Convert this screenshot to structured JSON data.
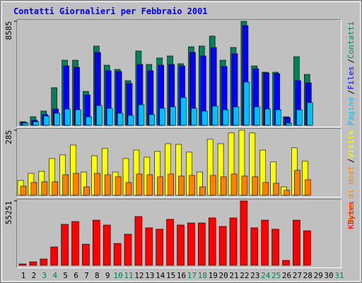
{
  "chart_data": {
    "type": "bar",
    "title": "Contatti Giornalieri per Febbraio 2001",
    "legend_separator": "/",
    "categories": [
      "1",
      "2",
      "3",
      "4",
      "5",
      "6",
      "7",
      "8",
      "9",
      "10",
      "11",
      "12",
      "13",
      "14",
      "15",
      "16",
      "17",
      "18",
      "19",
      "20",
      "21",
      "22",
      "23",
      "24",
      "25",
      "26",
      "27",
      "28",
      "29",
      "30",
      "31"
    ],
    "category_colors": [
      "#000000",
      "#000000",
      "#00805c",
      "#00805c",
      "#000000",
      "#000000",
      "#000000",
      "#000000",
      "#000000",
      "#00805c",
      "#00805c",
      "#000000",
      "#000000",
      "#000000",
      "#000000",
      "#000000",
      "#00805c",
      "#00805c",
      "#000000",
      "#000000",
      "#000000",
      "#000000",
      "#000000",
      "#00805c",
      "#00805c",
      "#000000",
      "#000000",
      "#000000",
      "#000000",
      "#000000",
      "#00805c"
    ],
    "panels": [
      {
        "ylim": [
          0,
          8585
        ],
        "yticks": [
          8585
        ],
        "series": [
          {
            "name": "Contatti",
            "color": "#00805c",
            "values": [
              290,
              700,
              1170,
              3100,
              5370,
              5370,
              2800,
              6540,
              4960,
              4610,
              3680,
              6130,
              5020,
              5550,
              5720,
              5080,
              6480,
              6540,
              7360,
              5370,
              6420,
              8585,
              4900,
              4380,
              4380,
              700,
              5660,
              4200,
              null,
              null,
              null
            ]
          },
          {
            "name": "Files",
            "color": "#0000ff",
            "values": [
              235,
              410,
              880,
              1340,
              4900,
              4790,
              2510,
              6010,
              4500,
              4440,
              3450,
              5020,
              4500,
              4960,
              5020,
              4900,
              6010,
              5720,
              6420,
              4850,
              5900,
              8230,
              4670,
              4320,
              4260,
              640,
              3680,
              3500,
              null,
              null,
              null
            ]
          },
          {
            "name": "Pagine",
            "color": "#00c0ff",
            "values": [
              175,
              290,
              760,
              990,
              1340,
              1280,
              700,
              1630,
              1400,
              990,
              820,
              1690,
              880,
              1400,
              1520,
              2280,
              1400,
              1170,
              1580,
              1280,
              1520,
              3560,
              1520,
              1340,
              1280,
              175,
              1280,
              1870,
              null,
              null,
              null
            ]
          }
        ]
      },
      {
        "ylim": [
          0,
          285
        ],
        "yticks": [
          285
        ],
        "series": [
          {
            "name": "Visite",
            "color": "#ffff00",
            "values": [
              65,
              96,
              105,
              161,
              177,
              220,
              102,
              173,
              205,
              102,
              161,
              198,
              167,
              192,
              226,
              223,
              189,
              102,
              245,
              226,
              273,
              285,
              273,
              198,
              146,
              37,
              208,
              149,
              null,
              null,
              null
            ]
          },
          {
            "name": "Nomi di Host",
            "color": "#ff8000",
            "values": [
              40,
              56,
              59,
              59,
              90,
              96,
              37,
              96,
              90,
              81,
              56,
              93,
              90,
              81,
              93,
              84,
              87,
              37,
              87,
              81,
              93,
              84,
              81,
              56,
              53,
              22,
              109,
              68,
              null,
              null,
              null
            ]
          }
        ]
      },
      {
        "ylim": [
          0,
          55251
        ],
        "yticks": [
          55251
        ],
        "series": [
          {
            "name": "KBytes",
            "color": "#ff0000",
            "values": [
              1200,
              3000,
              5460,
              15800,
              35200,
              37600,
              18200,
              38800,
              34600,
              18800,
              26700,
              41900,
              32200,
              31000,
              39500,
              34600,
              36400,
              36400,
              40700,
              33400,
              40700,
              55251,
              32200,
              38800,
              31000,
              4250,
              38800,
              29700,
              null,
              null,
              null
            ]
          }
        ]
      }
    ]
  }
}
